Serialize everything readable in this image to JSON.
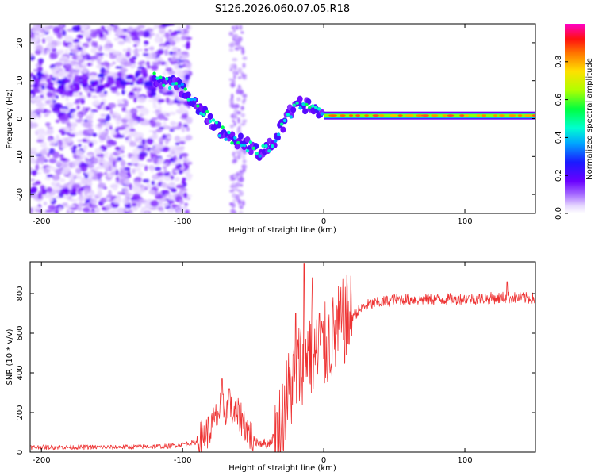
{
  "chart_data": [
    {
      "type": "heatmap",
      "title": "S126.2026.060.07.05.R18",
      "xlabel": "Height of straight line (km)",
      "ylabel": "Frequency (Hz)",
      "xlim": [
        -208,
        150
      ],
      "ylim": [
        -25,
        25
      ],
      "xticks": [
        -200,
        -100,
        0,
        100
      ],
      "yticks": [
        -20,
        -10,
        0,
        10,
        20
      ],
      "colorbar": {
        "label": "Normalized spectral amplitude",
        "range": [
          0,
          1
        ],
        "ticks": [
          0.0,
          0.2,
          0.4,
          0.6,
          0.8
        ]
      },
      "features": {
        "noise_region_km": [
          -208,
          -95
        ],
        "upper_track_km": [
          -205,
          -120
        ],
        "upper_track_hz": [
          9,
          12
        ],
        "descending_track": [
          {
            "x": -120,
            "y": 11
          },
          {
            "x": -100,
            "y": 8
          },
          {
            "x": -85,
            "y": 2
          },
          {
            "x": -75,
            "y": -3
          },
          {
            "x": -60,
            "y": -6
          },
          {
            "x": -45,
            "y": -9
          },
          {
            "x": -35,
            "y": -6
          },
          {
            "x": -25,
            "y": 1
          },
          {
            "x": -15,
            "y": 4
          },
          {
            "x": -5,
            "y": 2
          },
          {
            "x": 0,
            "y": 1.5
          }
        ],
        "steady_line_km": [
          0,
          150
        ],
        "steady_line_hz": 0.8
      }
    },
    {
      "type": "line",
      "xlabel": "Height of straight line (km)",
      "ylabel": "SNR (10 * v/v)",
      "xlim": [
        -208,
        150
      ],
      "ylim": [
        0,
        960
      ],
      "xticks": [
        -200,
        -100,
        0,
        100
      ],
      "yticks": [
        0,
        200,
        400,
        600,
        800
      ],
      "color": "#ee3333",
      "series": [
        {
          "name": "SNR",
          "points": [
            {
              "x": -208,
              "y": 25
            },
            {
              "x": -150,
              "y": 25
            },
            {
              "x": -110,
              "y": 30
            },
            {
              "x": -90,
              "y": 50
            },
            {
              "x": -80,
              "y": 120
            },
            {
              "x": -72,
              "y": 230
            },
            {
              "x": -65,
              "y": 200
            },
            {
              "x": -58,
              "y": 170
            },
            {
              "x": -50,
              "y": 60
            },
            {
              "x": -40,
              "y": 40
            },
            {
              "x": -32,
              "y": 100
            },
            {
              "x": -25,
              "y": 300
            },
            {
              "x": -18,
              "y": 420
            },
            {
              "x": -12,
              "y": 520
            },
            {
              "x": -5,
              "y": 480
            },
            {
              "x": 5,
              "y": 560
            },
            {
              "x": 15,
              "y": 660
            },
            {
              "x": 30,
              "y": 740
            },
            {
              "x": 50,
              "y": 770
            },
            {
              "x": 80,
              "y": 770
            },
            {
              "x": 110,
              "y": 775
            },
            {
              "x": 130,
              "y": 780
            },
            {
              "x": 150,
              "y": 775
            }
          ],
          "peaks": [
            {
              "x": -72,
              "y": 370
            },
            {
              "x": -67,
              "y": 320
            },
            {
              "x": -20,
              "y": 700
            },
            {
              "x": -14,
              "y": 950
            },
            {
              "x": -8,
              "y": 880
            },
            {
              "x": -3,
              "y": 700
            },
            {
              "x": 130,
              "y": 860
            }
          ]
        }
      ]
    }
  ],
  "colors": {
    "line": "#ee3333",
    "frame": "#000000",
    "background": "#ffffff"
  }
}
